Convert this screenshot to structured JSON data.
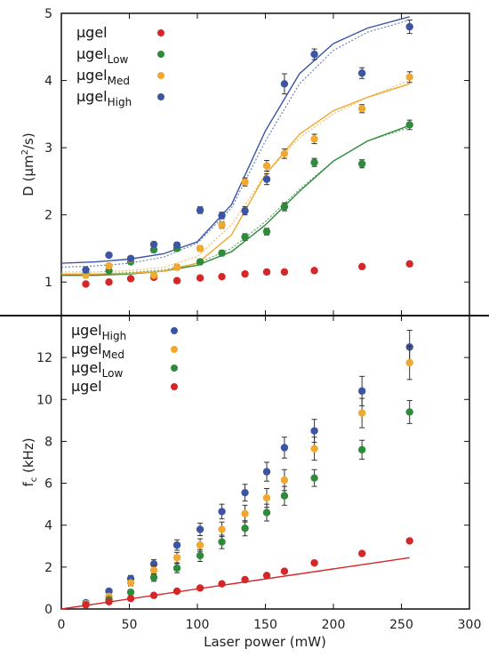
{
  "chart_data": [
    {
      "type": "scatter",
      "panel": "top",
      "title": "",
      "xlabel": "",
      "ylabel_main": "D (",
      "ylabel_unit": "μm",
      "ylabel_sup": "2",
      "ylabel_end": "/s)",
      "xlim": [
        0,
        300
      ],
      "ylim": [
        0.5,
        5
      ],
      "xticks": [
        0,
        50,
        100,
        150,
        200,
        250,
        300
      ],
      "yticks": [
        1,
        2,
        3,
        4,
        5
      ],
      "grid": false,
      "legend_position": "top-left",
      "x": [
        18,
        35,
        51,
        68,
        85,
        102,
        118,
        135,
        151,
        164,
        186,
        221,
        256
      ],
      "series": [
        {
          "name": "μgel",
          "sub": "",
          "color": "#d62728",
          "values": [
            0.97,
            1.0,
            1.05,
            1.07,
            1.02,
            1.06,
            1.08,
            1.12,
            1.15,
            1.15,
            1.17,
            1.23,
            1.27
          ],
          "errors": [
            0.02,
            0.02,
            0.02,
            0.02,
            0.02,
            0.02,
            0.02,
            0.02,
            0.02,
            0.02,
            0.02,
            0.03,
            0.03
          ]
        },
        {
          "name": "μgel",
          "sub": "Low",
          "color": "#2e8b3a",
          "values": [
            1.12,
            1.17,
            1.3,
            1.48,
            1.5,
            1.3,
            1.43,
            1.67,
            1.75,
            2.12,
            2.78,
            2.76,
            3.34
          ],
          "errors": [
            0.03,
            0.03,
            0.03,
            0.04,
            0.04,
            0.04,
            0.04,
            0.05,
            0.05,
            0.06,
            0.06,
            0.06,
            0.07
          ],
          "fit_solid": [
            [
              0,
              1.1
            ],
            [
              25,
              1.1
            ],
            [
              50,
              1.12
            ],
            [
              75,
              1.16
            ],
            [
              100,
              1.25
            ],
            [
              125,
              1.45
            ],
            [
              150,
              1.85
            ],
            [
              175,
              2.35
            ],
            [
              200,
              2.8
            ],
            [
              225,
              3.1
            ],
            [
              256,
              3.33
            ]
          ],
          "fit_dotted": [
            [
              0,
              1.12
            ],
            [
              25,
              1.12
            ],
            [
              50,
              1.14
            ],
            [
              75,
              1.18
            ],
            [
              100,
              1.28
            ],
            [
              125,
              1.5
            ],
            [
              150,
              1.9
            ],
            [
              175,
              2.38
            ],
            [
              200,
              2.8
            ],
            [
              225,
              3.1
            ],
            [
              256,
              3.3
            ]
          ]
        },
        {
          "name": "μgel",
          "sub": "Med",
          "color": "#f0a830",
          "values": [
            1.1,
            1.24,
            1.34,
            1.1,
            1.22,
            1.5,
            1.85,
            2.49,
            2.73,
            2.91,
            3.13,
            3.58,
            4.05
          ],
          "errors": [
            0.03,
            0.03,
            0.03,
            0.03,
            0.04,
            0.04,
            0.05,
            0.06,
            0.08,
            0.07,
            0.07,
            0.06,
            0.08
          ],
          "fit_solid": [
            [
              0,
              1.12
            ],
            [
              25,
              1.12
            ],
            [
              50,
              1.13
            ],
            [
              75,
              1.16
            ],
            [
              100,
              1.28
            ],
            [
              125,
              1.7
            ],
            [
              150,
              2.6
            ],
            [
              175,
              3.2
            ],
            [
              200,
              3.55
            ],
            [
              225,
              3.75
            ],
            [
              256,
              3.95
            ]
          ],
          "fit_dotted": [
            [
              0,
              1.15
            ],
            [
              25,
              1.15
            ],
            [
              50,
              1.17
            ],
            [
              75,
              1.22
            ],
            [
              100,
              1.38
            ],
            [
              125,
              1.85
            ],
            [
              150,
              2.6
            ],
            [
              175,
              3.15
            ],
            [
              200,
              3.5
            ],
            [
              225,
              3.75
            ],
            [
              256,
              4.0
            ]
          ]
        },
        {
          "name": "μgel",
          "sub": "High",
          "color": "#3b55a4",
          "values": [
            1.18,
            1.4,
            1.35,
            1.56,
            1.55,
            2.07,
            1.99,
            2.06,
            2.53,
            3.95,
            4.39,
            4.11,
            4.8
          ],
          "errors": [
            0.03,
            0.03,
            0.03,
            0.04,
            0.04,
            0.05,
            0.05,
            0.06,
            0.08,
            0.15,
            0.08,
            0.08,
            0.1
          ],
          "fit_solid": [
            [
              0,
              1.28
            ],
            [
              25,
              1.3
            ],
            [
              50,
              1.34
            ],
            [
              75,
              1.42
            ],
            [
              100,
              1.6
            ],
            [
              125,
              2.15
            ],
            [
              150,
              3.25
            ],
            [
              175,
              4.1
            ],
            [
              200,
              4.55
            ],
            [
              225,
              4.78
            ],
            [
              256,
              4.95
            ]
          ],
          "fit_dotted": [
            [
              0,
              1.22
            ],
            [
              25,
              1.24
            ],
            [
              50,
              1.28
            ],
            [
              75,
              1.37
            ],
            [
              100,
              1.58
            ],
            [
              125,
              2.1
            ],
            [
              150,
              3.1
            ],
            [
              175,
              3.95
            ],
            [
              200,
              4.45
            ],
            [
              225,
              4.72
            ],
            [
              256,
              4.9
            ]
          ]
        }
      ]
    },
    {
      "type": "scatter",
      "panel": "bottom",
      "title": "",
      "xlabel": "Laser power (mW)",
      "ylabel_main": "f",
      "ylabel_sub": "c",
      "ylabel_end": " (kHz)",
      "xlim": [
        0,
        300
      ],
      "ylim": [
        0,
        14
      ],
      "xticks": [
        0,
        50,
        100,
        150,
        200,
        250,
        300
      ],
      "yticks": [
        0,
        2,
        4,
        6,
        8,
        10,
        12
      ],
      "grid": false,
      "legend_position": "top-left",
      "x": [
        18,
        35,
        51,
        68,
        85,
        102,
        118,
        135,
        151,
        164,
        186,
        221,
        256
      ],
      "series": [
        {
          "name": "μgel",
          "sub": "High",
          "color": "#3b55a4",
          "values": [
            0.3,
            0.85,
            1.45,
            2.15,
            3.05,
            3.8,
            4.65,
            5.55,
            6.55,
            7.7,
            8.5,
            10.4,
            12.5
          ],
          "errors": [
            0.05,
            0.1,
            0.15,
            0.2,
            0.25,
            0.3,
            0.35,
            0.4,
            0.45,
            0.5,
            0.55,
            0.7,
            0.8
          ]
        },
        {
          "name": "μgel",
          "sub": "Med",
          "color": "#f0a830",
          "values": [
            0.25,
            0.6,
            1.25,
            1.85,
            2.45,
            3.05,
            3.8,
            4.55,
            5.3,
            6.15,
            7.65,
            9.35,
            11.75
          ],
          "errors": [
            0.05,
            0.1,
            0.15,
            0.2,
            0.25,
            0.3,
            0.35,
            0.4,
            0.45,
            0.5,
            0.55,
            0.7,
            0.8
          ]
        },
        {
          "name": "μgel",
          "sub": "Low",
          "color": "#2e8b3a",
          "values": [
            0.2,
            0.45,
            0.8,
            1.5,
            1.95,
            2.55,
            3.2,
            3.85,
            4.6,
            5.4,
            6.25,
            7.6,
            9.4
          ],
          "errors": [
            0.05,
            0.1,
            0.12,
            0.18,
            0.22,
            0.28,
            0.32,
            0.36,
            0.4,
            0.45,
            0.4,
            0.45,
            0.55
          ]
        },
        {
          "name": "μgel",
          "sub": "",
          "color": "#d62728",
          "values": [
            0.2,
            0.35,
            0.5,
            0.65,
            0.85,
            1.0,
            1.2,
            1.4,
            1.6,
            1.8,
            2.2,
            2.65,
            3.25
          ],
          "errors": [
            0.02,
            0.02,
            0.02,
            0.03,
            0.03,
            0.03,
            0.04,
            0.04,
            0.04,
            0.05,
            0.05,
            0.06,
            0.06
          ],
          "fit_solid": [
            [
              0,
              0.0
            ],
            [
              256,
              2.45
            ]
          ]
        }
      ]
    }
  ]
}
